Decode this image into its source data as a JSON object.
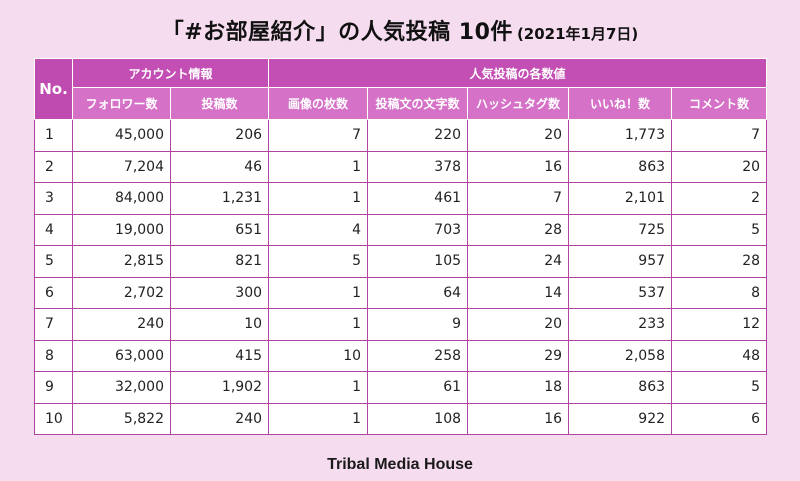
{
  "title": "「#お部屋紹介」の人気投稿 10件",
  "date": "(2021年1月7日)",
  "table": {
    "no_header": "No.",
    "group_account": "アカウント情報",
    "group_post": "人気投稿の各数値",
    "columns": [
      "フォロワー数",
      "投稿数",
      "画像の枚数",
      "投稿文の文字数",
      "ハッシュタグ数",
      "いいね！数",
      "コメント数"
    ],
    "rows": [
      {
        "no": "1",
        "cells": [
          "45,000",
          "206",
          "7",
          "220",
          "20",
          "1,773",
          "7"
        ]
      },
      {
        "no": "2",
        "cells": [
          "7,204",
          "46",
          "1",
          "378",
          "16",
          "863",
          "20"
        ]
      },
      {
        "no": "3",
        "cells": [
          "84,000",
          "1,231",
          "1",
          "461",
          "7",
          "2,101",
          "2"
        ]
      },
      {
        "no": "4",
        "cells": [
          "19,000",
          "651",
          "4",
          "703",
          "28",
          "725",
          "5"
        ]
      },
      {
        "no": "5",
        "cells": [
          "2,815",
          "821",
          "5",
          "105",
          "24",
          "957",
          "28"
        ]
      },
      {
        "no": "6",
        "cells": [
          "2,702",
          "300",
          "1",
          "64",
          "14",
          "537",
          "8"
        ]
      },
      {
        "no": "7",
        "cells": [
          "240",
          "10",
          "1",
          "9",
          "20",
          "233",
          "12"
        ]
      },
      {
        "no": "8",
        "cells": [
          "63,000",
          "415",
          "10",
          "258",
          "29",
          "2,058",
          "48"
        ]
      },
      {
        "no": "9",
        "cells": [
          "32,000",
          "1,902",
          "1",
          "61",
          "18",
          "863",
          "5"
        ]
      },
      {
        "no": "10",
        "cells": [
          "5,822",
          "240",
          "1",
          "108",
          "16",
          "922",
          "6"
        ]
      }
    ]
  },
  "footer": "Tribal Media House"
}
